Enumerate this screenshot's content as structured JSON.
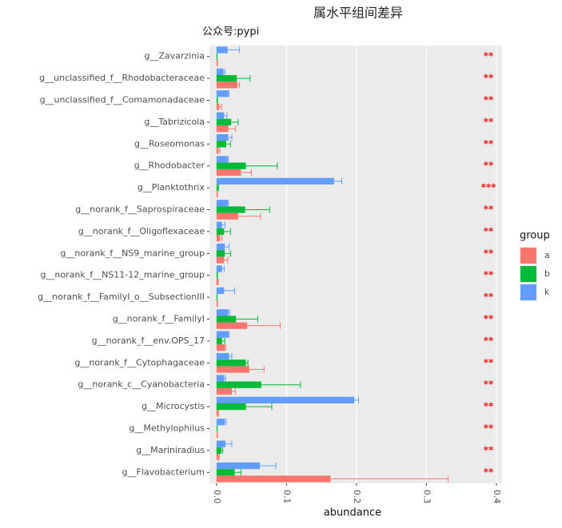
{
  "chart_data": {
    "type": "bar",
    "orientation": "horizontal",
    "title": "属水平组间差异",
    "subtitle": "公众号:pypi",
    "xlabel": "abundance",
    "legend_title": "group",
    "categories": [
      "g__Zavarzinia",
      "g__unclassified_f__Rhodobacteraceae",
      "g__unclassified_f__Comamonadaceae",
      "g__Tabrizicola",
      "g__Roseomonas",
      "g__Rhodobacter",
      "g__Planktothrix",
      "g__norank_f__Saprospiraceae",
      "g__norank_f__Oligoflexaceae",
      "g__norank_f__NS9_marine_group",
      "g__norank_f__NS11-12_marine_group",
      "g__norank_f__FamilyI_o__SubsectionIII",
      "g__norank_f__FamilyI",
      "g__norank_f__env.OPS_17",
      "g__norank_f__Cytophagaceae",
      "g__norank_c__Cyanobacteria",
      "g__Microcystis",
      "g__Methylophilus",
      "g__Mariniradius",
      "g__Flavobacterium"
    ],
    "significance": [
      "**",
      "**",
      "**",
      "**",
      "**",
      "**",
      "***",
      "**",
      "**",
      "**",
      "**",
      "**",
      "**",
      "**",
      "**",
      "**",
      "**",
      "**",
      "**",
      "**"
    ],
    "series": [
      {
        "name": "a",
        "color": "#F8766D",
        "values": [
          0.001,
          0.03,
          0.004,
          0.017,
          0.003,
          0.035,
          0.001,
          0.031,
          0.005,
          0.011,
          0.002,
          0.001,
          0.044,
          0.012,
          0.047,
          0.022,
          0.002,
          0.001,
          0.003,
          0.163
        ],
        "errors": [
          0.0005,
          0.003,
          0.003,
          0.01,
          0.002,
          0.015,
          0.0005,
          0.032,
          0.003,
          0.005,
          0.0005,
          0.0005,
          0.047,
          0.001,
          0.021,
          0.005,
          0.001,
          0.0005,
          0.001,
          0.168
        ]
      },
      {
        "name": "b",
        "color": "#00BA38",
        "values": [
          0.0005,
          0.029,
          0.001,
          0.021,
          0.014,
          0.042,
          0.002,
          0.041,
          0.011,
          0.012,
          0.001,
          0.0005,
          0.028,
          0.008,
          0.042,
          0.064,
          0.042,
          0.0005,
          0.007,
          0.026
        ],
        "errors": [
          0.0005,
          0.019,
          0.0005,
          0.01,
          0.006,
          0.045,
          0.001,
          0.035,
          0.009,
          0.008,
          0.0005,
          0.0005,
          0.031,
          0.004,
          0.003,
          0.056,
          0.037,
          0.0005,
          0.002,
          0.009
        ]
      },
      {
        "name": "k",
        "color": "#619CFF",
        "values": [
          0.016,
          0.01,
          0.017,
          0.011,
          0.017,
          0.016,
          0.168,
          0.016,
          0.008,
          0.012,
          0.008,
          0.011,
          0.017,
          0.017,
          0.018,
          0.011,
          0.197,
          0.012,
          0.013,
          0.062
        ],
        "errors": [
          0.017,
          0.002,
          0.001,
          0.004,
          0.005,
          0.001,
          0.011,
          0.001,
          0.004,
          0.006,
          0.003,
          0.015,
          0.002,
          0.001,
          0.004,
          0.002,
          0.006,
          0.002,
          0.009,
          0.023
        ]
      }
    ],
    "xlim": [
      -0.01,
      0.408
    ],
    "xticks": [
      {
        "value": 0,
        "label": "0.0"
      },
      {
        "value": 0.1,
        "label": "0.1"
      },
      {
        "value": 0.2,
        "label": "0.2"
      },
      {
        "value": 0.3,
        "label": "0.3"
      },
      {
        "value": 0.4,
        "label": "0.4"
      }
    ],
    "grid": true
  }
}
